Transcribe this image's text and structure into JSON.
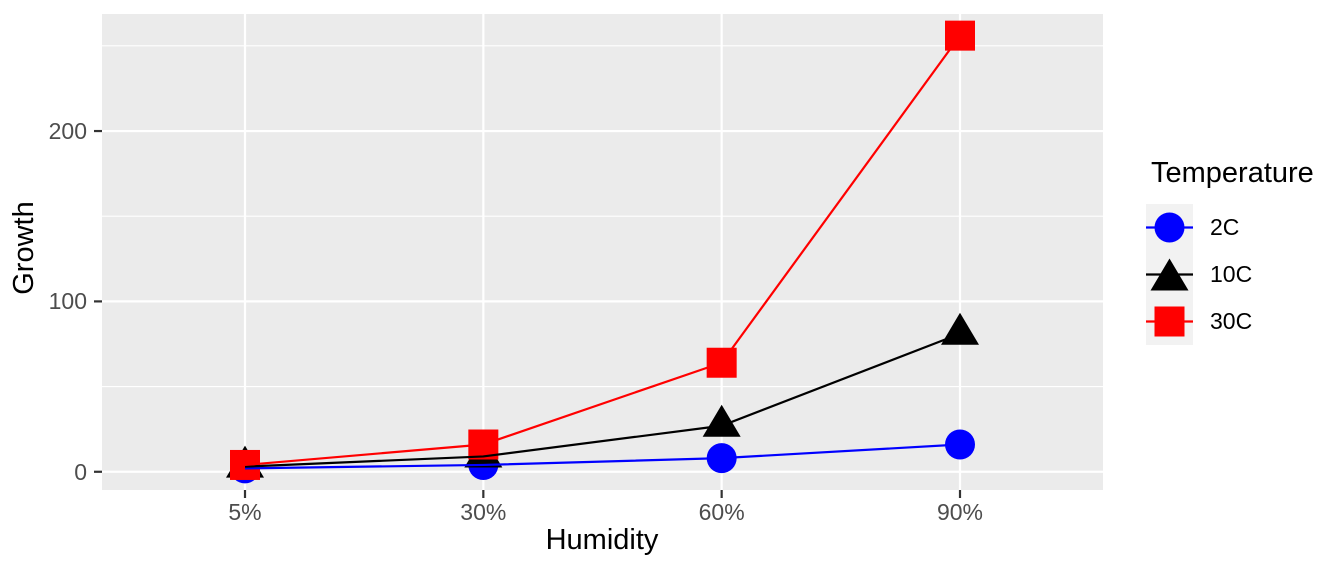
{
  "chart_data": {
    "type": "line",
    "title": "",
    "xlabel": "Humidity",
    "ylabel": "Growth",
    "categories": [
      "5%",
      "30%",
      "60%",
      "90%"
    ],
    "series": [
      {
        "name": "2C",
        "color": "#0000FF",
        "marker": "circle",
        "values": [
          2,
          4,
          8,
          16
        ]
      },
      {
        "name": "10C",
        "color": "#000000",
        "marker": "triangle",
        "values": [
          3,
          9,
          27,
          81
        ]
      },
      {
        "name": "30C",
        "color": "#FF0000",
        "marker": "square",
        "values": [
          4,
          16,
          64,
          256
        ]
      }
    ],
    "yticks": [
      0,
      100,
      200
    ],
    "yminor": [
      50,
      150,
      250
    ],
    "ylim": [
      -10.7,
      268.7
    ],
    "grid": true,
    "legend": {
      "title": "Temperature",
      "position": "right",
      "labels": [
        "2C",
        "10C",
        "30C"
      ]
    },
    "style": {
      "plot_bg": "#FFFFFF",
      "panel_bg": "#EBEBEB",
      "grid_color": "#FFFFFF",
      "legend_key_bg": "#F2F2F2",
      "tick_label_color": "#4D4D4D",
      "tick_mark_color": "#333333",
      "text_color": "#000000"
    }
  }
}
